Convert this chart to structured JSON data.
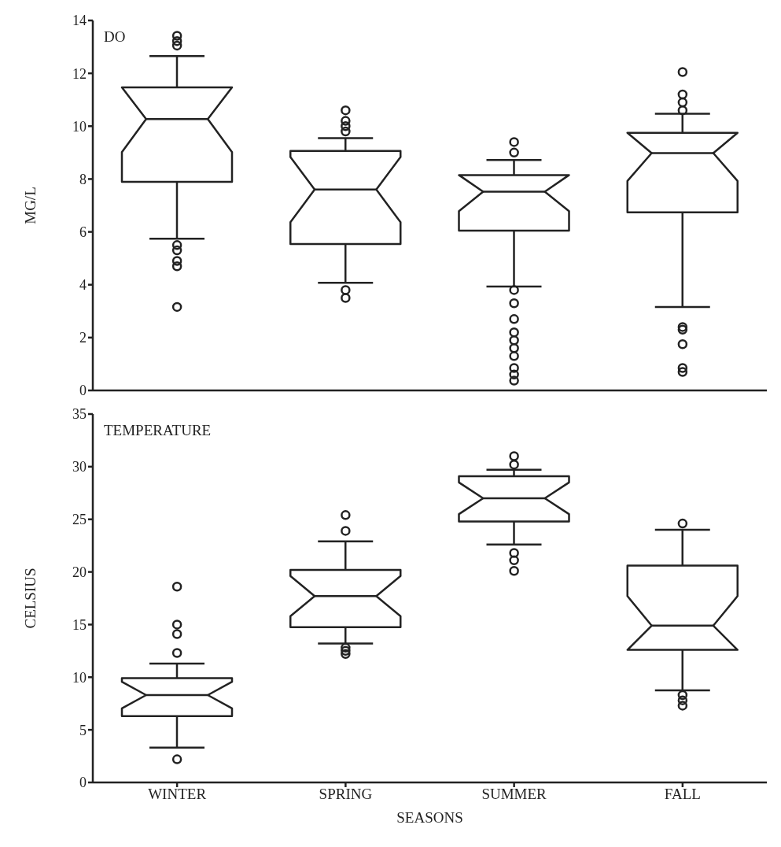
{
  "chart_data": [
    {
      "type": "box",
      "title": "DO",
      "ylabel": "MG/L",
      "categories": [
        null,
        null,
        null,
        null
      ],
      "ylim": [
        0,
        14
      ],
      "yticks": [
        0,
        2,
        4,
        6,
        8,
        10,
        12,
        14
      ],
      "tick_labels": "y",
      "marker": "circle",
      "series": [
        {
          "color": "#222222",
          "boxes": [
            {
              "low": 5.74,
              "q1": 7.89,
              "median": 10.27,
              "q3": 11.47,
              "high": 12.65,
              "outliers": [
                13.42,
                13.22,
                13.05,
                5.5,
                5.3,
                4.9,
                4.7,
                3.16
              ]
            },
            {
              "low": 4.07,
              "q1": 5.54,
              "median": 7.6,
              "q3": 9.06,
              "high": 9.55,
              "outliers": [
                10.6,
                10.2,
                10.0,
                9.8,
                3.8,
                3.5
              ]
            },
            {
              "low": 3.93,
              "q1": 6.05,
              "median": 7.52,
              "q3": 8.15,
              "high": 8.72,
              "outliers": [
                9.4,
                9.0,
                3.8,
                3.3,
                2.7,
                2.2,
                1.9,
                1.6,
                1.3,
                0.85,
                0.6,
                0.37
              ]
            },
            {
              "low": 3.16,
              "q1": 6.74,
              "median": 8.98,
              "q3": 9.75,
              "high": 10.47,
              "outliers": [
                12.05,
                11.2,
                10.9,
                10.6,
                2.4,
                2.3,
                1.75,
                0.85,
                0.7
              ]
            }
          ]
        }
      ]
    },
    {
      "type": "box",
      "title": "TEMPERATURE",
      "xlabel": "SEASONS",
      "ylabel": "CELSIUS",
      "categories": [
        "WINTER",
        "SPRING",
        "SUMMER",
        "FALL"
      ],
      "ylim": [
        0,
        35
      ],
      "yticks": [
        0,
        5,
        10,
        15,
        20,
        25,
        30,
        35
      ],
      "marker": "circle",
      "series": [
        {
          "color": "#222222",
          "boxes": [
            {
              "low": 3.3,
              "q1": 6.3,
              "median": 8.3,
              "q3": 9.9,
              "high": 11.3,
              "outliers": [
                18.6,
                15.0,
                14.1,
                12.3,
                2.2
              ]
            },
            {
              "low": 13.2,
              "q1": 14.75,
              "median": 17.7,
              "q3": 20.2,
              "high": 22.9,
              "outliers": [
                25.4,
                23.9,
                12.8,
                12.5,
                12.2
              ]
            },
            {
              "low": 22.6,
              "q1": 24.8,
              "median": 27.0,
              "q3": 29.1,
              "high": 29.7,
              "outliers": [
                31.0,
                30.2,
                21.8,
                21.1,
                20.1
              ]
            },
            {
              "low": 8.75,
              "q1": 12.6,
              "median": 14.9,
              "q3": 20.6,
              "high": 24.0,
              "outliers": [
                24.6,
                8.3,
                7.8,
                7.3
              ]
            }
          ]
        }
      ]
    }
  ]
}
